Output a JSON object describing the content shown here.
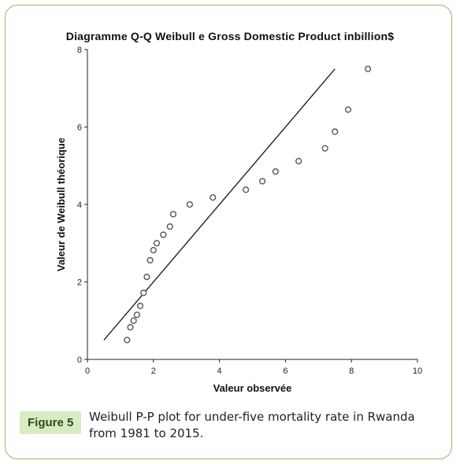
{
  "figure": {
    "badge": "Figure 5",
    "caption": "Weibull P-P plot for under-five mortality rate in Rwanda from 1981 to 2015."
  },
  "chart_data": {
    "type": "scatter",
    "title": "Diagramme Q-Q Weibull  e Gross Domestic Product inbillion$",
    "xlabel": "Valeur observée",
    "ylabel": "Valeur de Weibull théorique",
    "xlim": [
      0,
      10
    ],
    "ylim": [
      0,
      8
    ],
    "xticks": [
      0,
      2,
      4,
      6,
      8,
      10
    ],
    "yticks": [
      0,
      2,
      4,
      6,
      8
    ],
    "grid": false,
    "reference_line": {
      "x": [
        0.5,
        7.5
      ],
      "y": [
        0.5,
        7.5
      ]
    },
    "points": [
      {
        "x": 1.2,
        "y": 0.5
      },
      {
        "x": 1.3,
        "y": 0.83
      },
      {
        "x": 1.4,
        "y": 1.0
      },
      {
        "x": 1.5,
        "y": 1.15
      },
      {
        "x": 1.6,
        "y": 1.38
      },
      {
        "x": 1.7,
        "y": 1.72
      },
      {
        "x": 1.8,
        "y": 2.13
      },
      {
        "x": 1.9,
        "y": 2.56
      },
      {
        "x": 2.0,
        "y": 2.82
      },
      {
        "x": 2.1,
        "y": 3.0
      },
      {
        "x": 2.3,
        "y": 3.22
      },
      {
        "x": 2.5,
        "y": 3.43
      },
      {
        "x": 2.6,
        "y": 3.75
      },
      {
        "x": 3.1,
        "y": 4.0
      },
      {
        "x": 3.8,
        "y": 4.18
      },
      {
        "x": 4.8,
        "y": 4.38
      },
      {
        "x": 5.3,
        "y": 4.6
      },
      {
        "x": 5.7,
        "y": 4.85
      },
      {
        "x": 6.4,
        "y": 5.12
      },
      {
        "x": 7.2,
        "y": 5.45
      },
      {
        "x": 7.5,
        "y": 5.88
      },
      {
        "x": 7.9,
        "y": 6.45
      },
      {
        "x": 8.5,
        "y": 7.5
      }
    ],
    "colors": {
      "marker": "#555555",
      "line": "#111111",
      "axis": "#222222"
    }
  }
}
